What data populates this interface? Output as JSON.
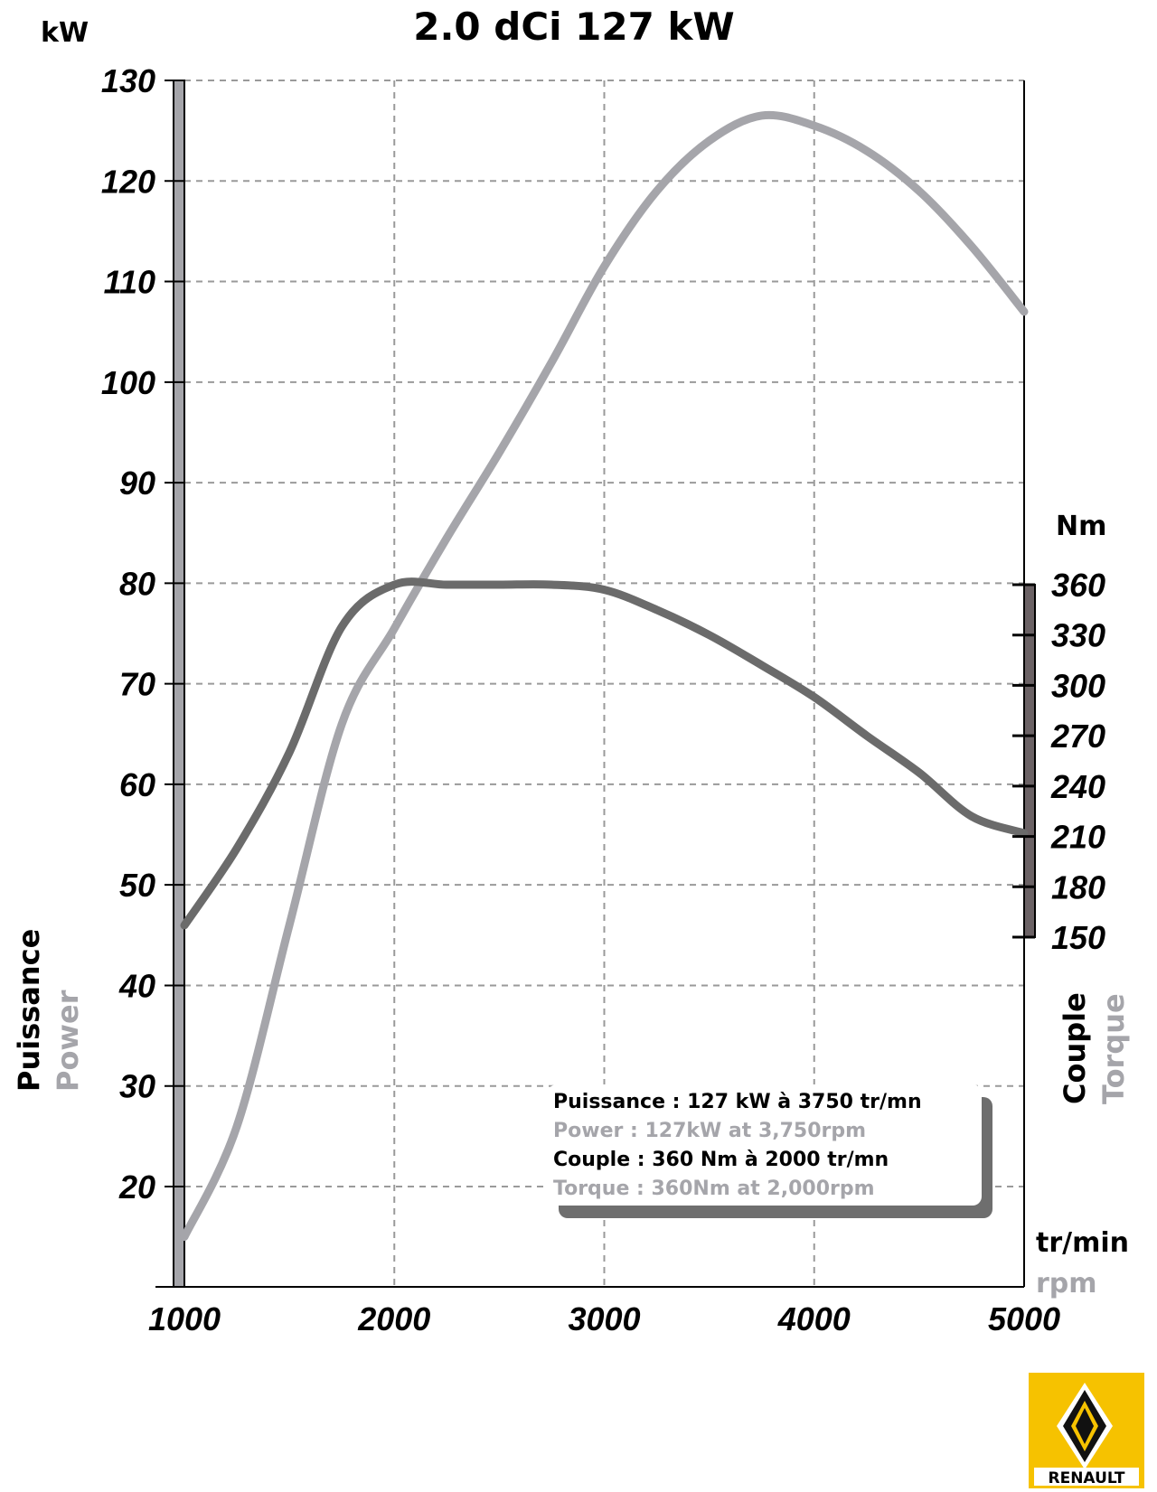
{
  "chart_data": {
    "type": "line",
    "title": "2.0 dCi 127 kW",
    "x_unit": "tr/min",
    "x_unit_alt": "rpm",
    "xlim": [
      1000,
      5000
    ],
    "x_ticks": [
      1000,
      2000,
      3000,
      4000,
      5000
    ],
    "y_left": {
      "unit": "kW",
      "label": "Puissance",
      "label_alt": "Power",
      "range": [
        8,
        130
      ],
      "ticks": [
        20,
        30,
        40,
        50,
        60,
        70,
        80,
        90,
        100,
        110,
        120,
        130
      ]
    },
    "y_right": {
      "unit": "Nm",
      "label": "Couple",
      "label_alt": "Torque",
      "range": [
        150,
        360
      ],
      "ticks": [
        150,
        180,
        210,
        240,
        270,
        300,
        330,
        360
      ]
    },
    "grid": true,
    "series": [
      {
        "axis": "left",
        "color": "#a5a5aa",
        "x": [
          1000,
          1250,
          1500,
          1750,
          2000,
          2250,
          2500,
          2750,
          3000,
          3250,
          3500,
          3750,
          4000,
          4250,
          4500,
          4750,
          5000
        ],
        "y": [
          15,
          26,
          46,
          66,
          75.5,
          84.5,
          93,
          102,
          111.5,
          119,
          124,
          126.5,
          125.5,
          123,
          119,
          113.5,
          107
        ]
      },
      {
        "axis": "right",
        "color": "#6b6b6b",
        "x": [
          1000,
          1250,
          1500,
          1750,
          2000,
          2250,
          2500,
          2750,
          3000,
          3250,
          3500,
          3750,
          4000,
          4250,
          4500,
          4750,
          5000
        ],
        "y": [
          157,
          203,
          260,
          335,
          360,
          360,
          360,
          360,
          357,
          345,
          330,
          312,
          293,
          270,
          248,
          222,
          212
        ]
      }
    ],
    "annotations": [
      {
        "text": "Puissance : 127 kW à 3750 tr/mn",
        "color": "#000000"
      },
      {
        "text": "Power : 127kW at 3,750rpm",
        "color": "#a5a5aa"
      },
      {
        "text": "Couple : 360 Nm à 2000 tr/mn",
        "color": "#000000"
      },
      {
        "text": "Torque : 360Nm at 2,000rpm",
        "color": "#a5a5aa"
      }
    ]
  },
  "logo": {
    "brand": "RENAULT",
    "background": "#f6c200"
  },
  "colors": {
    "power_line": "#a5a5aa",
    "torque_line": "#6b6b6b",
    "left_axis_bar": "#a5a5aa",
    "right_axis_bar": "#6b6265"
  }
}
